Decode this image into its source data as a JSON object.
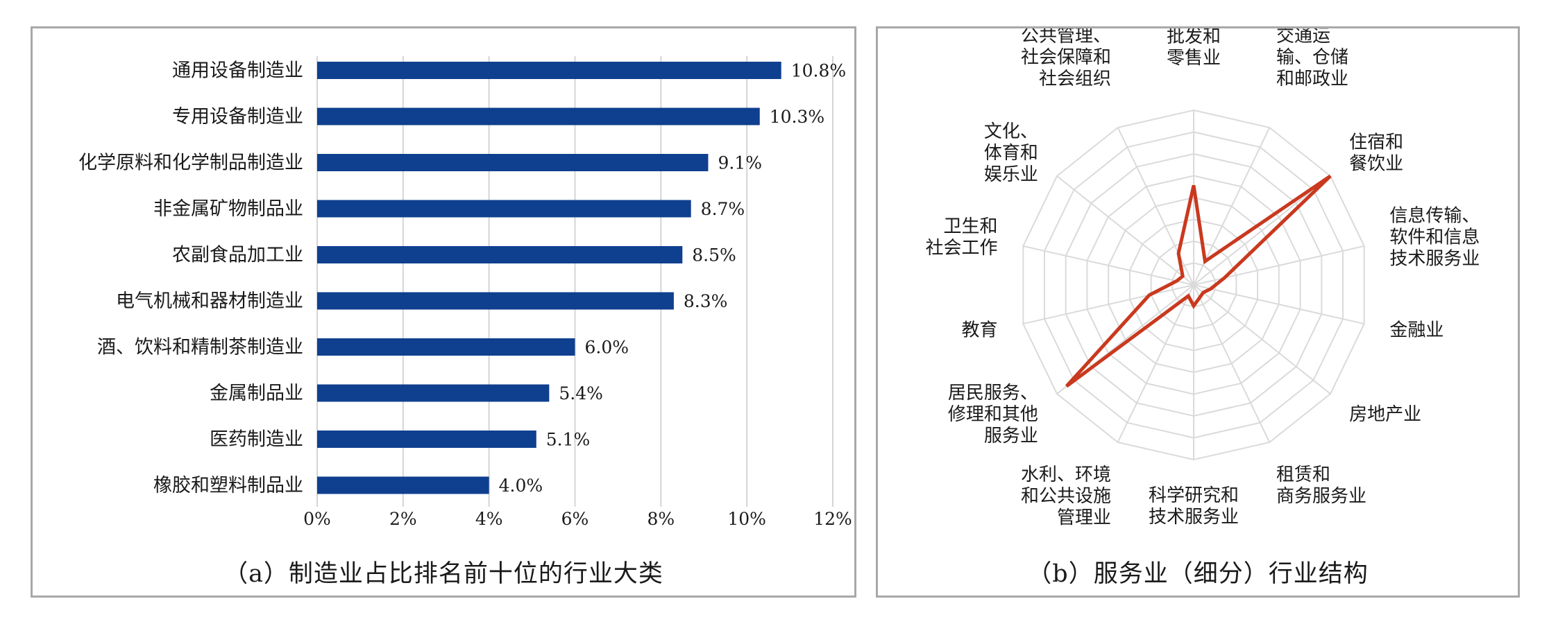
{
  "chart_data": [
    {
      "type": "bar",
      "orientation": "horizontal",
      "caption": "（a）制造业占比排名前十位的行业大类",
      "categories": [
        "通用设备制造业",
        "专用设备制造业",
        "化学原料和化学制品制造业",
        "非金属矿物制品业",
        "农副食品加工业",
        "电气机械和器材制造业",
        "酒、饮料和精制茶制造业",
        "金属制品业",
        "医药制造业",
        "橡胶和塑料制品业"
      ],
      "values": [
        10.8,
        10.3,
        9.1,
        8.7,
        8.5,
        8.3,
        6.0,
        5.4,
        5.1,
        4.0
      ],
      "value_labels": [
        "10.8%",
        "10.3%",
        "9.1%",
        "8.7%",
        "8.5%",
        "8.3%",
        "6.0%",
        "5.4%",
        "5.1%",
        "4.0%"
      ],
      "xlim": [
        0,
        12
      ],
      "xticks": [
        0,
        2,
        4,
        6,
        8,
        10,
        12
      ],
      "xtick_labels": [
        "0%",
        "2%",
        "4%",
        "6%",
        "8%",
        "10%",
        "12%"
      ],
      "grid": true,
      "bar_color": "#0f3f8f"
    },
    {
      "type": "radar",
      "caption": "（b）服务业（细分）行业结构",
      "axes": [
        [
          "批发和",
          "零售业"
        ],
        [
          "交通运",
          "输、仓储",
          "和邮政业"
        ],
        [
          "住宿和",
          "餐饮业"
        ],
        [
          "信息传输、",
          "软件和信息",
          "技术服务业"
        ],
        [
          "金融业"
        ],
        [
          "房地产业"
        ],
        [
          "租赁和",
          "商务服务业"
        ],
        [
          "科学研究和",
          "技术服务业"
        ],
        [
          "水利、环境",
          "和公共设施",
          "管理业"
        ],
        [
          "居民服务、",
          "修理和其他",
          "服务业"
        ],
        [
          "教育"
        ],
        [
          "卫生和",
          "社会工作"
        ],
        [
          "文化、",
          "体育和",
          "娱乐业"
        ],
        [
          "公共管理、",
          "社会保障和",
          "社会组织"
        ]
      ],
      "values": [
        0.57,
        0.15,
        1.0,
        0.18,
        0.1,
        0.07,
        0.08,
        0.12,
        0.07,
        0.93,
        0.26,
        0.1,
        0.08,
        0.2
      ],
      "rmax": 1.0,
      "rings": 8,
      "grid": true,
      "line_color": "#c9391e"
    }
  ]
}
